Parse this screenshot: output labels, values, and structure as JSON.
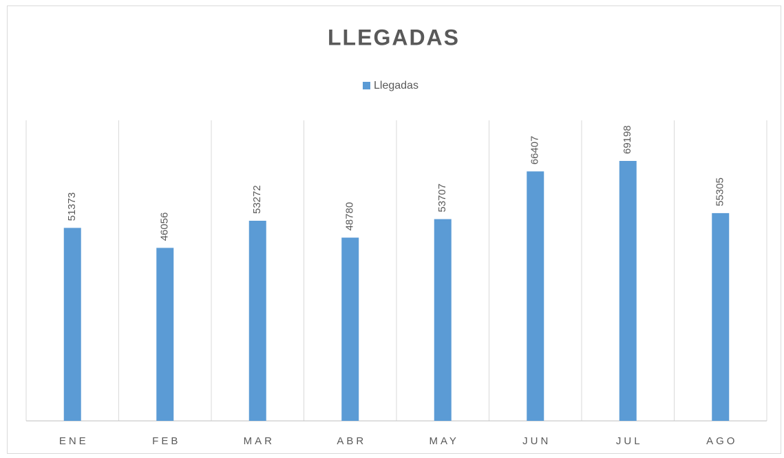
{
  "chart_data": {
    "type": "bar",
    "title": "LLEGADAS",
    "categories": [
      "ENE",
      "FEB",
      "MAR",
      "ABR",
      "MAY",
      "JUN",
      "JUL",
      "AGO"
    ],
    "series": [
      {
        "name": "Llegadas",
        "color": "#5b9bd5",
        "values": [
          51373,
          46056,
          53272,
          48780,
          53707,
          66407,
          69198,
          55305
        ]
      }
    ],
    "ylim": [
      0,
      80000
    ],
    "legend": "top"
  }
}
